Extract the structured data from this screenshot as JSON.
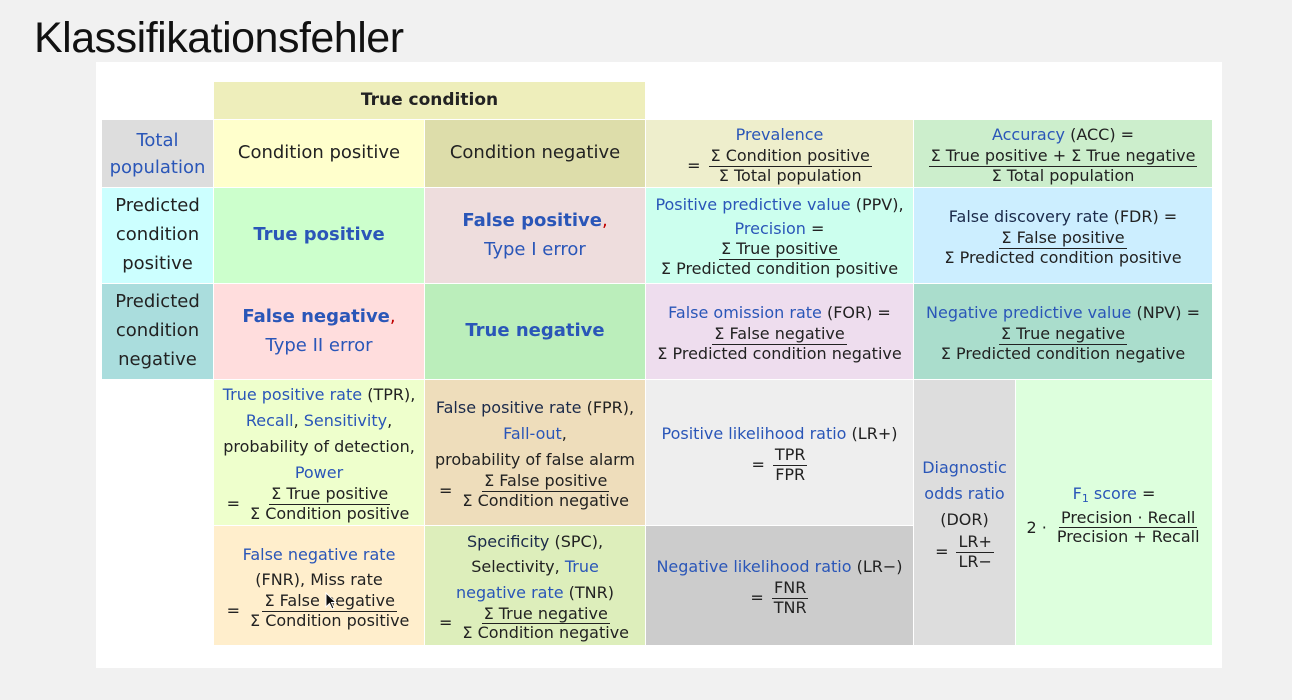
{
  "slide": {
    "title": "Klassifikationsfehler"
  },
  "matrix": {
    "true_condition": "True condition",
    "total_population": [
      "Total",
      "population"
    ],
    "condition_positive": "Condition positive",
    "condition_negative": "Condition negative",
    "predicted_positive": [
      "Predicted",
      "condition",
      "positive"
    ],
    "predicted_negative": [
      "Predicted",
      "condition",
      "negative"
    ],
    "true_positive": "True positive",
    "false_positive": "False positive",
    "type1": "Type I error",
    "false_negative": "False negative",
    "type2": "Type II error",
    "true_negative": "True negative",
    "comma": ",",
    "eq": "="
  },
  "metrics": {
    "prevalence": {
      "name": "Prevalence",
      "num": "Σ Condition positive",
      "den": "Σ Total population"
    },
    "accuracy": {
      "name": "Accuracy",
      "abbr": " (ACC) =",
      "num": "Σ True positive + Σ True negative",
      "den": "Σ Total population"
    },
    "ppv": {
      "name": "Positive predictive value",
      "abbr": " (PPV),",
      "alias": "Precision",
      "alias_tail": " =",
      "num": "Σ True positive",
      "den": "Σ Predicted condition positive"
    },
    "fdr": {
      "name": "False discovery rate",
      "abbr": " (FDR) =",
      "num": "Σ False positive",
      "den": "Σ Predicted condition positive"
    },
    "for": {
      "name": "False omission rate",
      "abbr": " (FOR) =",
      "num": "Σ False negative",
      "den": "Σ Predicted condition negative"
    },
    "npv": {
      "name": "Negative predictive value",
      "abbr": " (NPV) =",
      "num": "Σ True negative",
      "den": "Σ Predicted condition negative"
    },
    "tpr": {
      "name": "True positive rate",
      "abbr": " (TPR),",
      "recall": "Recall",
      "sensitivity": "Sensitivity",
      "line3": "probability of detection,",
      "power": "Power",
      "num": "Σ True positive",
      "den": "Σ Condition positive"
    },
    "fpr": {
      "name": "False positive rate",
      "abbr": " (FPR),",
      "fallout": "Fall-out",
      "line3": "probability of false alarm",
      "num": "Σ False positive",
      "den": "Σ Condition negative"
    },
    "lrplus": {
      "name": "Positive likelihood ratio",
      "abbr": " (LR+)",
      "num": "TPR",
      "den": "FPR"
    },
    "dor": {
      "name1": "Diagnostic",
      "name2": "odds ratio",
      "abbr": "(DOR)",
      "num": "LR+",
      "den": "LR−"
    },
    "f1": {
      "label_f": "F",
      "label_sub": "1",
      "label_rest": " score",
      "tail": " =",
      "prefix": "2 ·",
      "num": "Precision · Recall",
      "den": "Precision + Recall"
    },
    "fnr": {
      "name": "False negative rate",
      "line2": "(FNR), Miss rate",
      "num": "Σ False negative",
      "den": "Σ Condition positive"
    },
    "tnr": {
      "name": "Specificity",
      "abbr": " (SPC),",
      "line2a": "Selectivity, ",
      "line2b": "True",
      "line3a": "negative rate",
      "line3b": " (TNR)",
      "num": "Σ True negative",
      "den": "Σ Condition negative"
    },
    "lrminus": {
      "name": "Negative likelihood ratio",
      "abbr": " (LR−)",
      "num": "FNR",
      "den": "TNR"
    }
  },
  "colors": {
    "true_condition": "#eeeebb",
    "cond_pos": "#ffffcc",
    "cond_neg": "#ddddaa",
    "pred_pos": "#ccffff",
    "pred_neg": "#aadddd",
    "tp": "#ccffcc",
    "fp": "#eedddd",
    "fn": "#ffdddd",
    "tn": "#bbeebb",
    "prevalence": "#eeeecc",
    "accuracy": "#cceecc",
    "ppv": "#ccffee",
    "fdr": "#cceeff",
    "for": "#eeddee",
    "npv": "#aaddcc",
    "tpr": "#eeffcc",
    "fpr": "#eeddbb",
    "lrplus": "#eeeeee",
    "dor": "#dddddd",
    "f1": "#ddffdd",
    "fnr": "#ffeecc",
    "tnr": "#ddeebb",
    "lrminus": "#cccccc",
    "link": "#2a56b8"
  },
  "icons": {
    "cursor": "mouse-pointer-icon"
  }
}
